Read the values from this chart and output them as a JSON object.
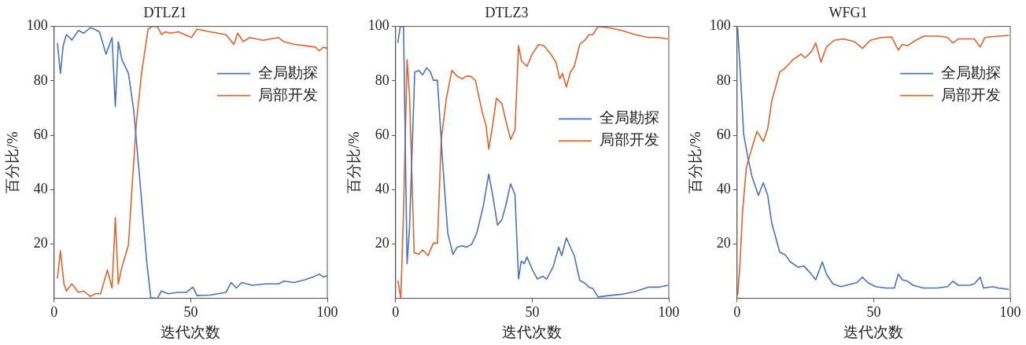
{
  "chart_data": [
    {
      "type": "line",
      "title": "DTLZ1",
      "xlabel": "迭代次数",
      "ylabel": "百分比/%",
      "xlim": [
        0,
        100
      ],
      "xticks": [
        0,
        50,
        100
      ],
      "ylim": [
        0,
        100
      ],
      "yticks": [
        20,
        40,
        60,
        80,
        100
      ],
      "grid": false,
      "legend": "top right",
      "marker": "none",
      "line_style": "solid",
      "series": [
        {
          "name": "全局勘探",
          "color": "#4a72c0",
          "x": [
            1.2,
            2.3,
            3.3,
            4.5,
            6.5,
            8.9,
            10.8,
            13.2,
            14.7,
            16.6,
            19,
            21.2,
            22.4,
            23.5,
            24.8,
            27.2,
            29.1,
            31.5,
            33.9,
            35.4,
            37.8,
            39.3,
            41.7,
            45.5,
            48.4,
            50.8,
            52.3,
            57.1,
            62.9,
            64.8,
            66.7,
            68.7,
            72.5,
            77.3,
            82.1,
            84.1,
            87.9,
            91.8,
            94.7,
            97.1,
            98.6,
            100
          ],
          "values": [
            93.9,
            82.7,
            92.9,
            97,
            95,
            98.5,
            97.5,
            99.5,
            99,
            98,
            89.8,
            95.9,
            70.5,
            94.4,
            87.8,
            82.7,
            69.5,
            42,
            13.4,
            0.2,
            0,
            2.7,
            1.7,
            2.2,
            2.2,
            4.1,
            1,
            1.2,
            2.2,
            5.8,
            3.8,
            5.8,
            4.8,
            5.3,
            5.3,
            6.3,
            5.8,
            6.8,
            7.8,
            8.9,
            7.8,
            8.4
          ]
        },
        {
          "name": "局部开发",
          "color": "#e2622c",
          "x": [
            1.2,
            2.3,
            3.6,
            4.5,
            6.5,
            8.9,
            10.8,
            13.2,
            15.1,
            17,
            19.5,
            21.2,
            22.4,
            23.5,
            24.8,
            27.2,
            28.6,
            30.1,
            32,
            34.4,
            35.9,
            37.8,
            39.3,
            40.7,
            42.6,
            45.5,
            50.3,
            52.3,
            57.1,
            62.9,
            65.8,
            67.2,
            69.2,
            71.6,
            76.4,
            82.1,
            84.1,
            87.9,
            91.8,
            95.6,
            97.1,
            98.6,
            100
          ],
          "values": [
            7.3,
            17.5,
            5.3,
            2.7,
            5.3,
            2.2,
            2.7,
            0.7,
            1.7,
            1.7,
            10.4,
            3.8,
            29.7,
            5.3,
            11.4,
            19.6,
            42,
            64.4,
            82.7,
            99,
            100,
            100,
            97,
            98,
            97.5,
            98,
            95.9,
            99,
            98,
            97,
            93.4,
            97.5,
            94.4,
            95.9,
            94.9,
            95.9,
            94.4,
            93.4,
            92.9,
            92.4,
            91,
            92.4,
            91.9
          ]
        }
      ]
    },
    {
      "type": "line",
      "title": "DTLZ3",
      "xlabel": "迭代次数",
      "ylabel": "百分比/%",
      "xlim": [
        0,
        100
      ],
      "xticks": [
        0,
        50,
        100
      ],
      "ylim": [
        0,
        100
      ],
      "yticks": [
        20,
        40,
        60,
        80,
        100
      ],
      "grid": false,
      "legend": "right",
      "marker": "none",
      "line_style": "solid",
      "series": [
        {
          "name": "全局勘探",
          "color": "#4a72c0",
          "x": [
            0.8,
            1.7,
            2.9,
            4.2,
            5.1,
            7,
            8.5,
            9.9,
            11.4,
            12.8,
            13.8,
            15.3,
            17.2,
            19.1,
            21,
            22.5,
            24.4,
            25.9,
            27.8,
            29.7,
            32.1,
            34.1,
            35.5,
            37.3,
            38.9,
            40.3,
            42.1,
            43.7,
            45,
            46,
            47.1,
            48.1,
            50,
            51.9,
            53.9,
            55.3,
            57.7,
            59.7,
            60.8,
            62.5,
            64,
            65.4,
            67.4,
            69.3,
            70.8,
            72.2,
            74.1,
            78,
            82.8,
            87.6,
            92.5,
            96.3,
            99.7
          ],
          "values": [
            93.9,
            100,
            100,
            12.7,
            25.9,
            83.2,
            83.8,
            82.2,
            84.8,
            83.2,
            80.2,
            80.2,
            50.3,
            23.9,
            16.2,
            18.8,
            19.3,
            18.8,
            19.8,
            23.9,
            34,
            45.7,
            38.1,
            26.9,
            28.9,
            34,
            42.1,
            38.1,
            7.1,
            13.7,
            12.7,
            15.2,
            10.7,
            7.1,
            8.1,
            7.1,
            11.7,
            18.8,
            15.7,
            22.3,
            18.8,
            15.7,
            6.6,
            5.6,
            4.1,
            3.6,
            0.5,
            1,
            1.5,
            2.5,
            4.1,
            4.1,
            4.8
          ]
        },
        {
          "name": "局部开发",
          "color": "#e2622c",
          "x": [
            0.8,
            1.9,
            2.9,
            4.2,
            5.1,
            6.8,
            8.5,
            9.9,
            11.9,
            13.8,
            15.3,
            16.7,
            18.6,
            20.6,
            22.5,
            24.4,
            25.9,
            27.3,
            29.2,
            31.7,
            33.1,
            34.1,
            35.5,
            36.9,
            38.9,
            40.3,
            42.1,
            43.7,
            45,
            46.1,
            48.1,
            50,
            52.4,
            54.3,
            56.8,
            58.7,
            60.1,
            61.1,
            62.5,
            64,
            65.4,
            67.4,
            69.3,
            70.8,
            72.2,
            74.1,
            78,
            82.8,
            87.6,
            92.5,
            96.3,
            99.7
          ],
          "values": [
            6.6,
            0,
            32,
            87.8,
            74.6,
            16.8,
            16.2,
            17.8,
            15.7,
            20.3,
            20.3,
            58.4,
            73.6,
            83.8,
            81.7,
            80.7,
            81.7,
            81.7,
            80.2,
            68.5,
            63.5,
            54.8,
            63.5,
            73.6,
            71.6,
            65.5,
            58.4,
            61.9,
            92.9,
            87.3,
            85.3,
            89.8,
            93.4,
            92.9,
            89.8,
            86.8,
            80.7,
            82.7,
            77.7,
            83.2,
            85.3,
            93.4,
            94.9,
            97,
            97,
            100,
            99.5,
            98.5,
            97,
            95.9,
            95.9,
            95.4
          ]
        }
      ]
    },
    {
      "type": "line",
      "title": "WFG1",
      "xlabel": "迭代次数",
      "ylabel": "百分比/%",
      "xlim": [
        0,
        100
      ],
      "xticks": [
        0,
        50,
        100
      ],
      "ylim": [
        0,
        100
      ],
      "yticks": [
        20,
        40,
        60,
        80,
        100
      ],
      "grid": false,
      "legend": "top right",
      "marker": "none",
      "line_style": "solid",
      "series": [
        {
          "name": "全局勘探",
          "color": "#4a72c0",
          "x": [
            0.2,
            1.5,
            2.4,
            3.9,
            5.4,
            7.8,
            9.6,
            11.2,
            12.7,
            15.6,
            17.6,
            19.5,
            22.4,
            24.4,
            26.3,
            28.8,
            31.2,
            32.7,
            35.1,
            38,
            42,
            43.9,
            45.9,
            47.8,
            50.7,
            54.6,
            57.6,
            59,
            60.5,
            62.4,
            64.4,
            68.3,
            73.2,
            77.1,
            79,
            81,
            84.9,
            86.8,
            89,
            90.2,
            93.7,
            95.6,
            99.5
          ],
          "values": [
            99.5,
            77.6,
            60.3,
            52.1,
            45,
            37.9,
            42.5,
            37.9,
            27.7,
            17,
            16,
            13.4,
            11.4,
            11.9,
            9.9,
            6.8,
            13.4,
            8.9,
            5.3,
            4.3,
            5.3,
            5.8,
            7.8,
            5.8,
            4.3,
            3.8,
            3.8,
            8.9,
            6.8,
            6.3,
            4.8,
            3.8,
            3.8,
            4.3,
            6.3,
            4.8,
            4.8,
            5.3,
            7.8,
            3.8,
            4.3,
            3.8,
            3.3
          ]
        },
        {
          "name": "局部开发",
          "color": "#e2622c",
          "x": [
            0.2,
            1,
            2,
            3.4,
            5.4,
            7.3,
            9.6,
            11.2,
            12.7,
            15.6,
            17.6,
            20.5,
            23.4,
            24.9,
            27.3,
            28.8,
            30.7,
            32.7,
            35.6,
            39,
            42.9,
            45.9,
            48.8,
            52.7,
            56.6,
            59,
            60.5,
            62.4,
            65.4,
            68.3,
            74.1,
            77.1,
            79,
            81,
            86.8,
            89,
            90.7,
            95.6,
            99.5
          ],
          "values": [
            1.2,
            11.4,
            31.8,
            48.1,
            55.2,
            61.4,
            57.7,
            62.3,
            72.5,
            83.2,
            84.7,
            87.8,
            89.8,
            88.4,
            90.8,
            93.9,
            86.8,
            92.4,
            94.9,
            95.4,
            94.4,
            91.9,
            94.9,
            95.9,
            96.1,
            91.3,
            93.4,
            92.9,
            94.9,
            96.4,
            96.4,
            95.9,
            93.9,
            95.4,
            95.4,
            92.4,
            95.9,
            96.4,
            96.7
          ]
        }
      ]
    }
  ]
}
